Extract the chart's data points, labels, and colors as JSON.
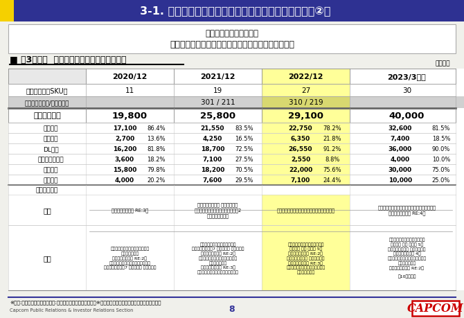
{
  "title": "3-1. 事業セグメント別概況（デジタルコンテンツ事業②）",
  "subtitle_line1": "積極的な価格施策を実施",
  "subtitle_line2": "デジタル・旧作の伸長を主因として、販売本数は増加",
  "section_title": "■ 第3四半期  販売本数実績（コンシューマ）",
  "unit_label": "（千本）",
  "header_bg": "#2e3192",
  "yellow_accent": "#f5d000",
  "yellow_col_bg": "#ffff99",
  "gray_row_bg": "#d0d0d0",
  "white": "#ffffff",
  "bg_color": "#f0f0eb",
  "columns": [
    "",
    "2020/12",
    "2021/12",
    "2022/12",
    "2023/3計画"
  ],
  "sub_rows": [
    {
      "label": "海外本数",
      "vals": [
        "17,100",
        "86.4%",
        "21,550",
        "83.5%",
        "22,750",
        "78.2%",
        "32,600",
        "81.5%"
      ]
    },
    {
      "label": "国内本数",
      "vals": [
        "2,700",
        "13.6%",
        "4,250",
        "16.5%",
        "6,350",
        "21.8%",
        "7,400",
        "18.5%"
      ]
    },
    {
      "label": "DL本数",
      "vals": [
        "16,200",
        "81.8%",
        "18,700",
        "72.5%",
        "26,550",
        "91.2%",
        "36,000",
        "90.0%"
      ]
    },
    {
      "label": "パッケージ本数",
      "vals": [
        "3,600",
        "18.2%",
        "7,100",
        "27.5%",
        "2,550",
        "8.8%",
        "4,000",
        "10.0%"
      ]
    },
    {
      "label": "旧作本数",
      "vals": [
        "15,800",
        "79.8%",
        "18,200",
        "70.5%",
        "22,000",
        "75.6%",
        "30,000",
        "75.0%"
      ]
    },
    {
      "label": "新作本数",
      "vals": [
        "4,000",
        "20.2%",
        "7,600",
        "29.5%",
        "7,100",
        "24.4%",
        "10,000",
        "25.0%"
      ]
    }
  ],
  "new_titles": [
    "『バイオハザード RE:3』",
    "『バイオハザード ヴィレッジ』\n『モンスターハンタースト－リーズ2\n　～破滅の翼～』",
    "『モンスターハンターライズ：サンブレイク』",
    "『モンスターハンターライズ：サンブレイク』\n『バイオハザード RE:4』"
  ],
  "old_titles": [
    "『モンスターハンターワールド：\nアイスボーン』\n『バイオハザード RE:2』\n『モンスターハンター：ワールド』\n『バイオハザード7 レジデント イービル』",
    "『モンスターハンターライズ』\n『バイオハザード7 レジデント イービル』\n『バイオハザード RE:2』\n『モンスターハンターワールド：\nアイスボーン』\n『バイオハザード RE:3』\n『モンスターハンター：ワールド』",
    "『モンスターハンターライズ』\n『デビル メイ クライ 5』\n『バイオハザード RE:2』\n『バイオハザード ヴィレッジ』\n『バイオハザード RE:3』\n『モンスターハンターワールド：\nアイスボーン』",
    "『モンスターハンターライズ』\n『デビル メイ クライ 5』\n『バイオハザード ヴィレッジ』\n『バイオハザード 4』\n『モンスターハンターワールド：\nアイスボーン』\n『バイオハザード RE:2』\n\n他10タイトル"
  ],
  "footer_note": "※新作:今期発売タイトル、旧作:前期以前の発売タイトル　　※ディストリビューションタイトルを含みます",
  "footer_dept": "Capcom Public Relations & Investor Relations Section",
  "page_num": "8"
}
